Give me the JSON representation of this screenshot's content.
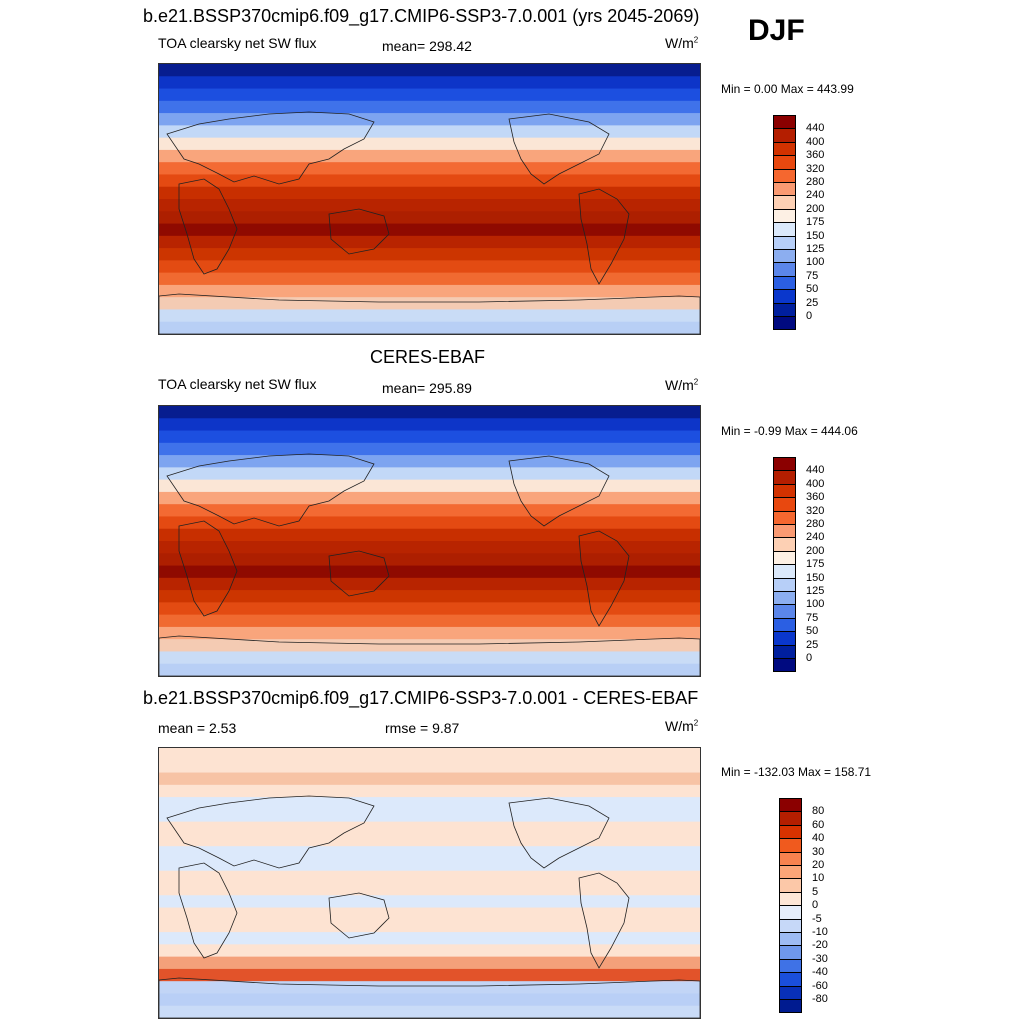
{
  "season": "DJF",
  "panels": [
    {
      "title": "b.e21.BSSP370cmip6.f09_g17.CMIP6-SSP3-7.0.001 (yrs 2045-2069)",
      "left_label": "TOA clearsky net SW flux",
      "center_label": "mean= 298.42",
      "units": "W/m",
      "units_sup": "2",
      "minmax": "Min =   0.00 Max = 443.99",
      "colorbar": {
        "labels": [
          "440",
          "400",
          "360",
          "320",
          "280",
          "240",
          "200",
          "175",
          "150",
          "125",
          "100",
          "75",
          "50",
          "25",
          "0"
        ],
        "colors": [
          "#8b0000",
          "#b41e00",
          "#d23200",
          "#e8480f",
          "#f5672f",
          "#fa9a72",
          "#fdd0b4",
          "#fdf0e4",
          "#dbe9fb",
          "#b7cff8",
          "#8caef0",
          "#5b86ea",
          "#2b5fe3",
          "#0a37cc",
          "#001f9e",
          "#000a80"
        ]
      },
      "map_colors": [
        "#071d8f",
        "#0d35c8",
        "#1c4fe0",
        "#3f72ea",
        "#7da4f0",
        "#c2d8f7",
        "#fbe6d6",
        "#f9a57c",
        "#f36a33",
        "#e44a12",
        "#c82f00",
        "#b82400",
        "#ad1f00",
        "#8f0a00",
        "#b82400",
        "#cc3500",
        "#e34b12",
        "#f06a31",
        "#f9a57c",
        "#f4cbb3",
        "#c9dcf6",
        "#b8cff5"
      ]
    },
    {
      "title": "CERES-EBAF",
      "left_label": "TOA clearsky net SW flux",
      "center_label": "mean= 295.89",
      "units": "W/m",
      "units_sup": "2",
      "minmax": "Min =  -0.99 Max = 444.06",
      "colorbar": {
        "labels": [
          "440",
          "400",
          "360",
          "320",
          "280",
          "240",
          "200",
          "175",
          "150",
          "125",
          "100",
          "75",
          "50",
          "25",
          "0"
        ],
        "colors": [
          "#8b0000",
          "#b41e00",
          "#d23200",
          "#e8480f",
          "#f5672f",
          "#fa9a72",
          "#fdd0b4",
          "#fdf0e4",
          "#dbe9fb",
          "#b7cff8",
          "#8caef0",
          "#5b86ea",
          "#2b5fe3",
          "#0a37cc",
          "#001f9e",
          "#000a80"
        ]
      },
      "map_colors": [
        "#071d8f",
        "#0d35c8",
        "#1c4fe0",
        "#3f72ea",
        "#7da4f0",
        "#c2d8f7",
        "#fbe6d6",
        "#f9a57c",
        "#f36a33",
        "#e44a12",
        "#c82f00",
        "#b82400",
        "#ad1f00",
        "#8f0a00",
        "#b82400",
        "#cc3500",
        "#e34b12",
        "#f06a31",
        "#f9a57c",
        "#f4cbb3",
        "#c9dcf6",
        "#b8cff5"
      ]
    },
    {
      "title": "b.e21.BSSP370cmip6.f09_g17.CMIP6-SSP3-7.0.001 - CERES-EBAF",
      "left_label": "mean =   2.53",
      "center_label": "rmse =   9.87",
      "units": "W/m",
      "units_sup": "2",
      "minmax": "Min = -132.03 Max = 158.71",
      "colorbar": {
        "labels": [
          "80",
          "60",
          "40",
          "30",
          "20",
          "10",
          "5",
          "0",
          "-5",
          "-10",
          "-20",
          "-30",
          "-40",
          "-60",
          "-80"
        ],
        "colors": [
          "#8b0000",
          "#b41e00",
          "#d83200",
          "#f05a1e",
          "#f7824f",
          "#fba578",
          "#fcc8a8",
          "#fde6d6",
          "#e6eefb",
          "#c6d8f8",
          "#9dbbf3",
          "#6f98ec",
          "#3f72e6",
          "#1a4fdc",
          "#0830b8",
          "#001b90"
        ]
      },
      "map_colors": [
        "#fde3d2",
        "#fde3d2",
        "#f7c3a5",
        "#fde3d2",
        "#dce9fb",
        "#dce9fb",
        "#fde3d2",
        "#fde3d2",
        "#dce9fb",
        "#dce9fb",
        "#fde3d2",
        "#fde3d2",
        "#dce9fb",
        "#fde3d2",
        "#fde3d2",
        "#dce9fb",
        "#fde3d2",
        "#f4a07a",
        "#e2532a",
        "#c2d5f6",
        "#b9cff6",
        "#c9dbf7"
      ]
    }
  ]
}
